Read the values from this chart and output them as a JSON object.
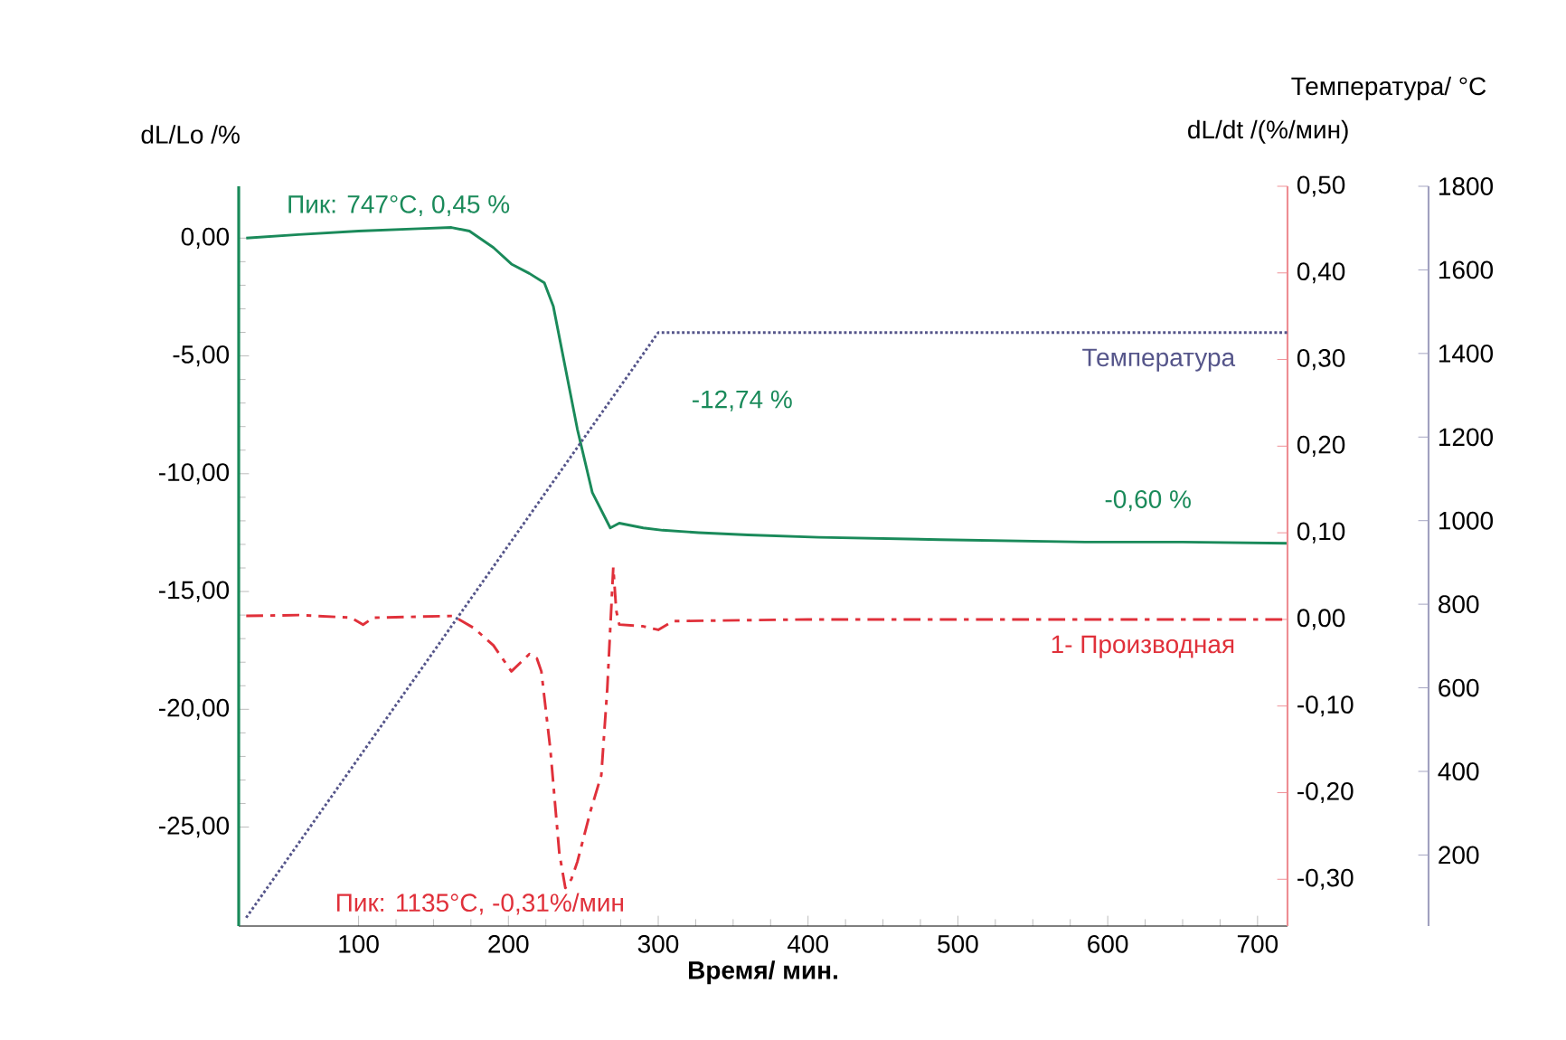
{
  "chart_data": {
    "type": "line",
    "xlabel": "Время/ мин.",
    "ylabel": "dL/Lo /%",
    "y2label": "dL/dt /(%/мин)",
    "y3label": "Температура/ °C",
    "xlim": [
      20,
      720
    ],
    "xticks": [
      100,
      200,
      300,
      400,
      500,
      600,
      700
    ],
    "ylim": [
      -29.2,
      2.2
    ],
    "yticks": [
      {
        "value": -25,
        "label": "-25,00"
      },
      {
        "value": -20,
        "label": "-20,00"
      },
      {
        "value": -15,
        "label": "-15,00"
      },
      {
        "value": -10,
        "label": "-10,00"
      },
      {
        "value": -5,
        "label": "-5,00"
      },
      {
        "value": 0,
        "label": "0,00"
      }
    ],
    "y2lim": [
      -0.354,
      0.5
    ],
    "y2ticks": [
      {
        "value": -0.3,
        "label": "-0,30"
      },
      {
        "value": -0.2,
        "label": "-0,20"
      },
      {
        "value": -0.1,
        "label": "-0,10"
      },
      {
        "value": 0,
        "label": "0,00"
      },
      {
        "value": 0.1,
        "label": "0,10"
      },
      {
        "value": 0.2,
        "label": "0,20"
      },
      {
        "value": 0.3,
        "label": "0,30"
      },
      {
        "value": 0.4,
        "label": "0,40"
      },
      {
        "value": 0.5,
        "label": "0,50"
      }
    ],
    "y3lim": [
      30,
      1800
    ],
    "y3ticks": [
      200,
      400,
      600,
      800,
      1000,
      1200,
      1400,
      1600,
      1800
    ],
    "marker": "none",
    "series": [
      {
        "color": "#1a8a5a",
        "line_style": "solid",
        "x": [
          25,
          60,
          100,
          140,
          162,
          174,
          190,
          202,
          214,
          224,
          230,
          238,
          246,
          256,
          268,
          274,
          290,
          303,
          327,
          360,
          407,
          488,
          585,
          650,
          720
        ],
        "values": [
          0,
          0.15,
          0.3,
          0.4,
          0.45,
          0.3,
          -0.4,
          -1.1,
          -1.5,
          -1.9,
          -2.9,
          -5.5,
          -8.1,
          -10.8,
          -12.3,
          -12.1,
          -12.3,
          -12.4,
          -12.5,
          -12.6,
          -12.7,
          -12.8,
          -12.9,
          -12.9,
          -12.95
        ]
      },
      {
        "name": "1- Производная",
        "color": "#e0303a",
        "axis": "y2",
        "line_style": "dashed",
        "x": [
          25,
          60,
          95,
          103,
          110,
          163,
          177,
          190,
          202,
          208,
          214,
          219,
          222,
          228,
          234,
          238,
          242,
          246,
          255,
          262,
          266,
          268,
          270,
          272,
          274,
          290,
          300,
          310,
          400,
          720
        ],
        "values": [
          0.004,
          0.005,
          0.002,
          -0.006,
          0.002,
          0.004,
          -0.01,
          -0.03,
          -0.06,
          -0.05,
          -0.04,
          -0.045,
          -0.06,
          -0.15,
          -0.27,
          -0.31,
          -0.3,
          -0.28,
          -0.22,
          -0.18,
          -0.08,
          -0.01,
          0.06,
          0.01,
          -0.006,
          -0.008,
          -0.012,
          -0.002,
          0,
          0
        ]
      },
      {
        "name": "Температура",
        "color": "#55558a",
        "axis": "y3",
        "line_style": "dotted",
        "x": [
          25,
          300,
          720
        ],
        "values": [
          50,
          1450,
          1450
        ]
      }
    ],
    "annotations": [
      {
        "text": "Пик: 747°C, 0,45 %",
        "x": 162,
        "y": 0.45
      },
      "Пик: 1135°C, -0,31%/мин",
      "-12,74 %",
      "-0,60 %"
    ]
  }
}
